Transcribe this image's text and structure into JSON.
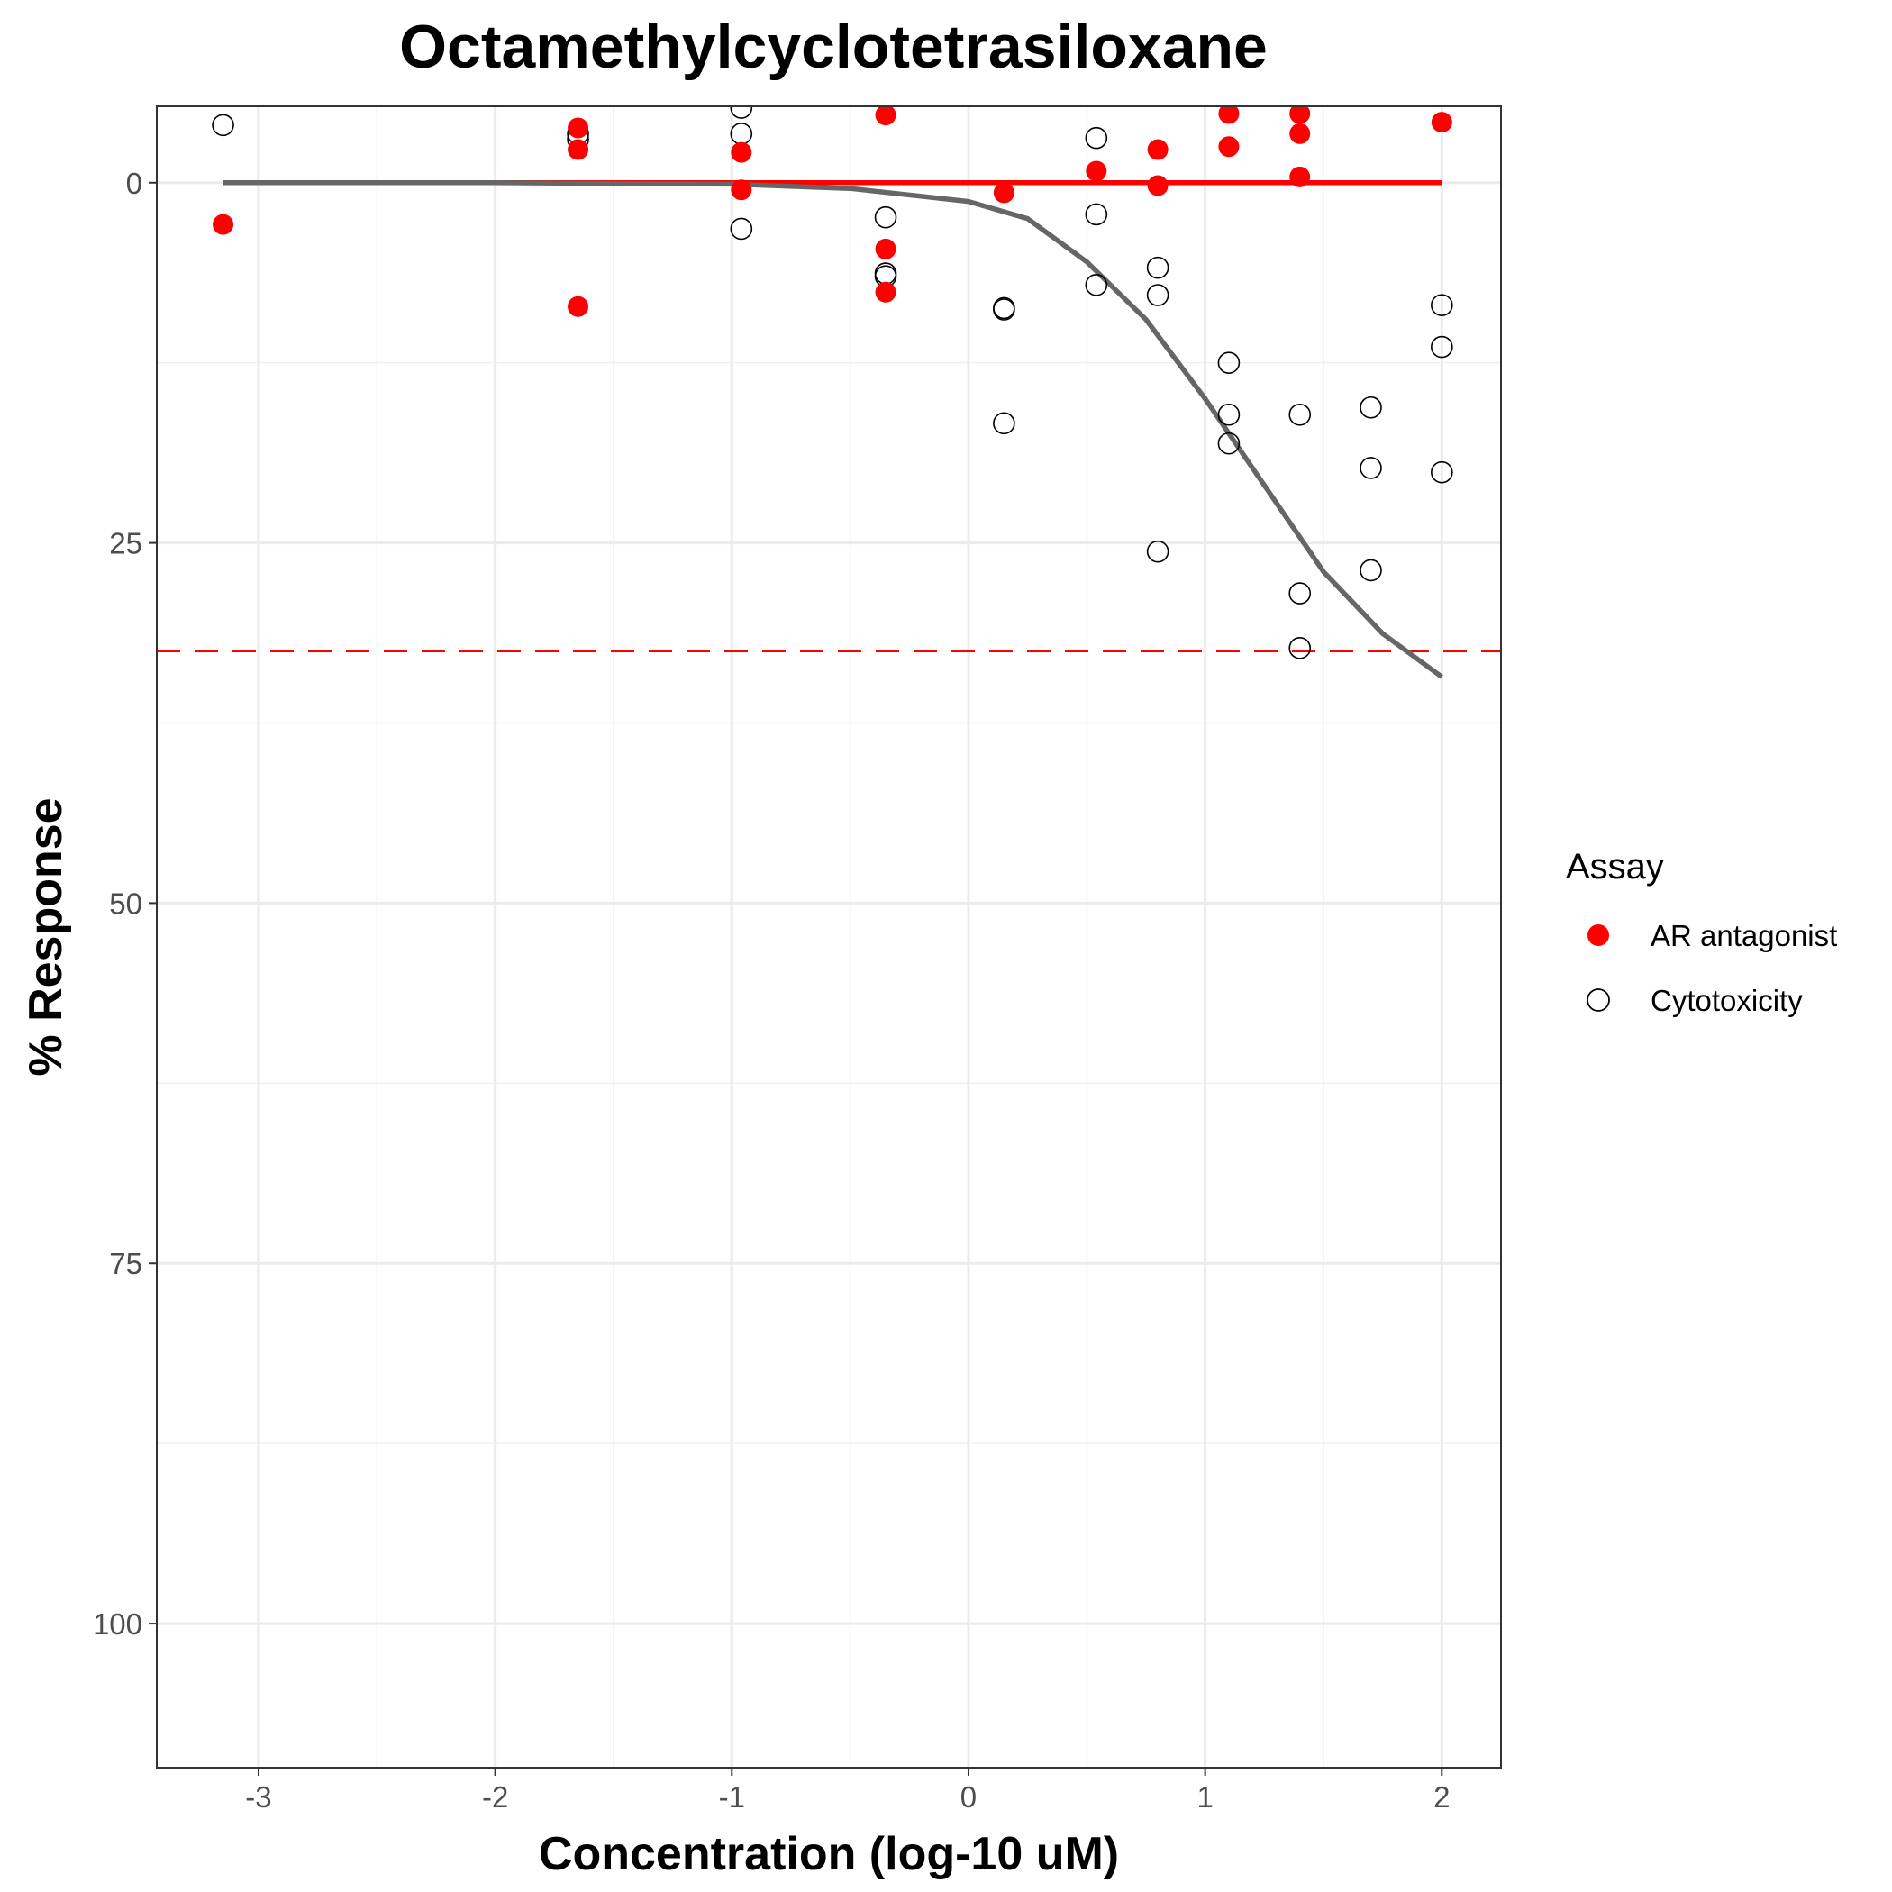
{
  "chart_data": {
    "type": "scatter",
    "title": "Octamethylcyclotetrasiloxane",
    "xlabel": "Concentration (log-10 uM)",
    "ylabel": "% Response",
    "xlim": [
      -3.43,
      2.25
    ],
    "ylim": [
      110,
      -5.3
    ],
    "y_reversed": true,
    "x_ticks": [
      -3,
      -2,
      -1,
      0,
      1,
      2
    ],
    "x_tick_labels": [
      "-3",
      "-2",
      "-1",
      "0",
      "1",
      "2"
    ],
    "y_ticks": [
      0,
      25,
      50,
      75,
      100
    ],
    "y_tick_labels": [
      "0",
      "25",
      "50",
      "75",
      "100"
    ],
    "grid": true,
    "legend": {
      "title": "Assay",
      "position": "right"
    },
    "threshold": {
      "y": 32.5,
      "color": "#ff0000",
      "style": "dashed"
    },
    "series": [
      {
        "name": "AR antagonist",
        "marker": "filled-circle",
        "color": "#ff0000",
        "points": [
          [
            -3.15,
            2.9
          ],
          [
            -1.65,
            -3.8
          ],
          [
            -1.65,
            -2.3
          ],
          [
            -1.65,
            8.6
          ],
          [
            -0.96,
            -2.1
          ],
          [
            -0.96,
            0.5
          ],
          [
            -0.35,
            -4.7
          ],
          [
            -0.35,
            4.6
          ],
          [
            -0.35,
            7.6
          ],
          [
            0.15,
            0.7
          ],
          [
            0.54,
            -0.8
          ],
          [
            0.8,
            -2.3
          ],
          [
            0.8,
            0.2
          ],
          [
            1.1,
            -4.8
          ],
          [
            1.1,
            -2.5
          ],
          [
            1.4,
            -4.8
          ],
          [
            1.4,
            -3.4
          ],
          [
            1.4,
            -0.4
          ],
          [
            2.0,
            -4.2
          ]
        ],
        "fit": [
          [
            -3.15,
            0
          ],
          [
            2.0,
            0
          ]
        ]
      },
      {
        "name": "Cytotoxicity",
        "marker": "open-circle",
        "color": "#000000",
        "points": [
          [
            -3.15,
            -4.0
          ],
          [
            -1.65,
            -3.4
          ],
          [
            -1.65,
            -3.0
          ],
          [
            -0.96,
            -5.2
          ],
          [
            -0.96,
            -3.4
          ],
          [
            -0.96,
            3.2
          ],
          [
            -0.35,
            2.4
          ],
          [
            -0.35,
            6.3
          ],
          [
            -0.35,
            6.5
          ],
          [
            0.15,
            8.7
          ],
          [
            0.15,
            8.8
          ],
          [
            0.15,
            16.7
          ],
          [
            0.54,
            -3.1
          ],
          [
            0.54,
            2.2
          ],
          [
            0.54,
            7.1
          ],
          [
            0.8,
            5.9
          ],
          [
            0.8,
            7.8
          ],
          [
            0.8,
            25.6
          ],
          [
            1.1,
            12.5
          ],
          [
            1.1,
            16.1
          ],
          [
            1.1,
            18.1
          ],
          [
            1.4,
            16.1
          ],
          [
            1.4,
            28.5
          ],
          [
            1.4,
            32.3
          ],
          [
            1.7,
            15.6
          ],
          [
            1.7,
            19.8
          ],
          [
            1.7,
            26.9
          ],
          [
            2.0,
            8.5
          ],
          [
            2.0,
            11.4
          ],
          [
            2.0,
            20.1
          ]
        ],
        "fit": [
          [
            -3.15,
            0
          ],
          [
            -2.0,
            0
          ],
          [
            -1.0,
            0.1
          ],
          [
            -0.5,
            0.4
          ],
          [
            0.0,
            1.3
          ],
          [
            0.25,
            2.5
          ],
          [
            0.5,
            5.5
          ],
          [
            0.75,
            9.5
          ],
          [
            1.0,
            15.0
          ],
          [
            1.25,
            21.0
          ],
          [
            1.5,
            27.0
          ],
          [
            1.75,
            31.3
          ],
          [
            2.0,
            34.3
          ]
        ]
      }
    ]
  }
}
